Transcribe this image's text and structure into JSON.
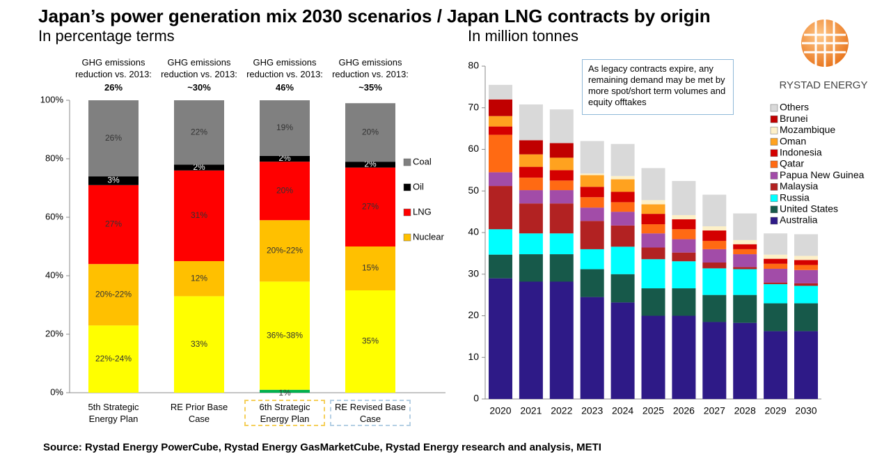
{
  "title": "Japan’s power generation mix 2030 scenarios / Japan LNG contracts by origin",
  "source": "Source: Rystad Energy PowerCube, Rystad Energy GasMarketCube, Rystad Energy research and analysis, METI",
  "logo_text": "RYSTAD ENERGY",
  "chart_data": [
    {
      "type": "bar",
      "stacked": true,
      "subtitle": "In percentage terms",
      "categories": [
        "5th Strategic Energy Plan",
        "RE Prior Base Case",
        "6th Strategic Energy Plan",
        "RE Revised Base Case"
      ],
      "headers": [
        {
          "label": "GHG emissions reduction vs. 2013:",
          "value": "26%"
        },
        {
          "label": "GHG emissions reduction vs. 2013:",
          "value": "~30%"
        },
        {
          "label": "GHG emissions reduction vs. 2013:",
          "value": "46%"
        },
        {
          "label": "GHG emissions reduction vs. 2013:",
          "value": "~35%"
        }
      ],
      "series": [
        {
          "color": "#00b050",
          "values": [
            null,
            null,
            1,
            null
          ],
          "value_labels": [
            null,
            null,
            "1%",
            null
          ]
        },
        {
          "color": "#ffff00",
          "values": [
            23,
            33,
            37,
            35
          ],
          "value_labels": [
            "22%-24%",
            "33%",
            "36%-38%",
            "35%"
          ]
        },
        {
          "name": "Nuclear",
          "color": "#ffc000",
          "values": [
            21,
            12,
            21,
            15
          ],
          "value_labels": [
            "20%-22%",
            "12%",
            "20%-22%",
            "15%"
          ]
        },
        {
          "name": "LNG",
          "color": "#ff0000",
          "values": [
            27,
            31,
            20,
            27
          ],
          "value_labels": [
            "27%",
            "31%",
            "20%",
            "27%"
          ]
        },
        {
          "name": "Oil",
          "color": "#000000",
          "values": [
            3,
            2,
            2,
            2
          ],
          "value_labels": [
            "3%",
            "2%",
            "2%",
            "2%"
          ]
        },
        {
          "name": "Coal",
          "color": "#808080",
          "values": [
            26,
            22,
            19,
            20
          ],
          "value_labels": [
            "26%",
            "22%",
            "19%",
            "20%"
          ]
        }
      ],
      "ylim": [
        0,
        100
      ],
      "yticks": [
        {
          "value": 0,
          "label": "0%"
        },
        {
          "value": 20,
          "label": "20%"
        },
        {
          "value": 40,
          "label": "40%"
        },
        {
          "value": 60,
          "label": "60%"
        },
        {
          "value": 80,
          "label": "80%"
        },
        {
          "value": 100,
          "label": "100%"
        }
      ],
      "grid": false
    },
    {
      "type": "bar",
      "stacked": true,
      "subtitle": "In million tonnes",
      "annotation": "As legacy contracts expire, any remaining demand may be met by more spot/short term volumes and equity offtakes",
      "categories": [
        "2020",
        "2021",
        "2022",
        "2023",
        "2024",
        "2025",
        "2026",
        "2027",
        "2028",
        "2029",
        "2030"
      ],
      "series": [
        {
          "name": "Australia",
          "color": "#2e1a87",
          "values": [
            29,
            28.2,
            28.2,
            24.5,
            23.2,
            20,
            20,
            18.5,
            18.3,
            16.3,
            16.3
          ]
        },
        {
          "name": "United States",
          "color": "#17594a",
          "values": [
            5.7,
            6.6,
            6.6,
            6.7,
            6.8,
            6.6,
            6.6,
            6.5,
            6.7,
            6.7,
            6.7
          ]
        },
        {
          "name": "Russia",
          "color": "#00ffff",
          "values": [
            6.1,
            5.0,
            5.0,
            4.8,
            6.6,
            7.0,
            6.5,
            6.4,
            6.2,
            4.6,
            4.2
          ]
        },
        {
          "name": "Malaysia",
          "color": "#b22222",
          "values": [
            10.4,
            7.2,
            7.2,
            6.8,
            5.1,
            2.8,
            2.1,
            1.4,
            0.5,
            0.4,
            0.6
          ]
        },
        {
          "name": "Papua New Guinea",
          "color": "#a24ca8",
          "values": [
            3.3,
            3.2,
            3.2,
            3.2,
            3.3,
            3.4,
            3.2,
            3.2,
            3.1,
            3.3,
            3.2
          ]
        },
        {
          "name": "Qatar",
          "color": "#ff6a13",
          "values": [
            9.0,
            3.0,
            2.3,
            2.5,
            2.3,
            2.2,
            2.4,
            2.0,
            1.2,
            1.2,
            1.2
          ]
        },
        {
          "name": "Indonesia",
          "color": "#d40000",
          "values": [
            2.0,
            2.6,
            2.5,
            2.5,
            2.5,
            2.5,
            2.4,
            2.5,
            1.2,
            1.2,
            1.2
          ]
        },
        {
          "name": "Oman",
          "color": "#ffa21f",
          "values": [
            2.5,
            3.0,
            3.0,
            2.8,
            3.0,
            2.3,
            0,
            0,
            0,
            0,
            0
          ]
        },
        {
          "name": "Mozambique",
          "color": "#fdf0c8",
          "values": [
            0,
            0,
            0,
            0.4,
            0.8,
            1.0,
            1.0,
            1.0,
            1.0,
            1.0,
            1.0
          ]
        },
        {
          "name": "Brunei",
          "color": "#c00000",
          "values": [
            4.0,
            3.4,
            3.5,
            0,
            0,
            0,
            0,
            0,
            0,
            0,
            0
          ]
        },
        {
          "name": "Others",
          "color": "#d9d9d9",
          "values": [
            3.5,
            8.6,
            8.1,
            7.8,
            7.7,
            7.7,
            8.2,
            7.6,
            6.4,
            5.1,
            5.2
          ]
        }
      ],
      "ylim": [
        0,
        80
      ],
      "yticks": [
        0,
        10,
        20,
        30,
        40,
        50,
        60,
        70,
        80
      ],
      "grid": false
    }
  ]
}
